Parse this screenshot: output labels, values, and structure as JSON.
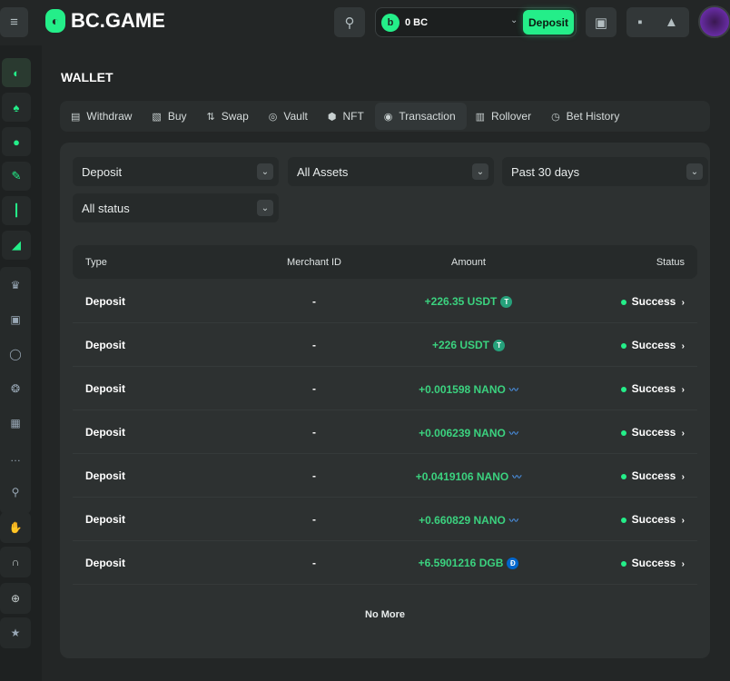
{
  "header": {
    "brand": "BC.GAME",
    "balance": "0 BC",
    "deposit_label": "Deposit"
  },
  "sidebar": {
    "items": [
      "bc-logo-icon",
      "casino-cards-icon",
      "sports-ball-icon",
      "lottery-ticket-icon",
      "trading-candles-icon",
      "racing-icon",
      "vip-crown-icon",
      "gift-icon",
      "spin-icon",
      "sponsorship-icon",
      "forum-icon",
      "chat-icon",
      "search-provably-icon",
      "affiliate-handshake-icon",
      "support-headset-icon",
      "language-globe-icon",
      "favorites-star-icon"
    ]
  },
  "page": {
    "title": "WALLET"
  },
  "tabs": [
    {
      "label": "Withdraw",
      "icon": "withdraw-icon"
    },
    {
      "label": "Buy",
      "icon": "buy-icon"
    },
    {
      "label": "Swap",
      "icon": "swap-icon"
    },
    {
      "label": "Vault",
      "icon": "vault-icon"
    },
    {
      "label": "NFT",
      "icon": "nft-icon"
    },
    {
      "label": "Transaction",
      "icon": "transaction-icon",
      "active": true
    },
    {
      "label": "Rollover",
      "icon": "rollover-icon"
    },
    {
      "label": "Bet History",
      "icon": "clock-icon"
    }
  ],
  "filters": {
    "type": "Deposit",
    "asset": "All Assets",
    "period": "Past 30 days",
    "status": "All status"
  },
  "table": {
    "headers": {
      "type": "Type",
      "merchant": "Merchant ID",
      "amount": "Amount",
      "status": "Status"
    },
    "rows": [
      {
        "type": "Deposit",
        "merchant": "-",
        "amount": "+226.35 USDT",
        "coin": "USDT",
        "status": "Success"
      },
      {
        "type": "Deposit",
        "merchant": "-",
        "amount": "+226 USDT",
        "coin": "USDT",
        "status": "Success"
      },
      {
        "type": "Deposit",
        "merchant": "-",
        "amount": "+0.001598 NANO",
        "coin": "NANO",
        "status": "Success"
      },
      {
        "type": "Deposit",
        "merchant": "-",
        "amount": "+0.006239 NANO",
        "coin": "NANO",
        "status": "Success"
      },
      {
        "type": "Deposit",
        "merchant": "-",
        "amount": "+0.0419106 NANO",
        "coin": "NANO",
        "status": "Success"
      },
      {
        "type": "Deposit",
        "merchant": "-",
        "amount": "+0.660829 NANO",
        "coin": "NANO",
        "status": "Success"
      },
      {
        "type": "Deposit",
        "merchant": "-",
        "amount": "+6.5901216 DGB",
        "coin": "DGB",
        "status": "Success"
      }
    ],
    "footer": "No More"
  },
  "colors": {
    "accent": "#24ee89",
    "amount": "#3bd27f",
    "usdt": "#26a17b",
    "dgb": "#0066cc"
  }
}
